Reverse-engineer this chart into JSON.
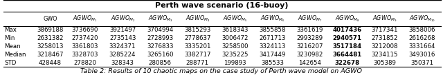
{
  "title": "Perth wave scenario (16-buoy)",
  "caption": "Table 2: Results of 10 chaotic maps on the case study of Perth wave model on AGWO",
  "rows": [
    [
      "Max",
      "3869188",
      "3736690",
      "3921497",
      "3704994",
      "3815293",
      "3618343",
      "3855858",
      "3361619",
      "4017436",
      "3717341",
      "3858006"
    ],
    [
      "Min",
      "2631382",
      "2737420",
      "2735143",
      "2728993",
      "2778637",
      "3006472",
      "2671713",
      "2993289",
      "2940571",
      "2731852",
      "2616268"
    ],
    [
      "Mean",
      "3258013",
      "3361803",
      "3324371",
      "3276833",
      "3335201",
      "3258500",
      "3324113",
      "3216207",
      "3517184",
      "3212008",
      "3331664"
    ],
    [
      "Median",
      "3218467",
      "3328703",
      "3285224",
      "3265160",
      "3382717",
      "3235225",
      "3417449",
      "3230982",
      "3664481",
      "3234115",
      "3493016"
    ],
    [
      "STD",
      "428448",
      "278820",
      "328343",
      "280856",
      "288771",
      "199893",
      "385533",
      "142654",
      "322678",
      "305389",
      "350371"
    ]
  ],
  "bold_col_index": 9,
  "bg_color": "#ffffff",
  "title_fontsize": 8.0,
  "header_fontsize": 5.8,
  "cell_fontsize": 6.2,
  "caption_fontsize": 6.8
}
